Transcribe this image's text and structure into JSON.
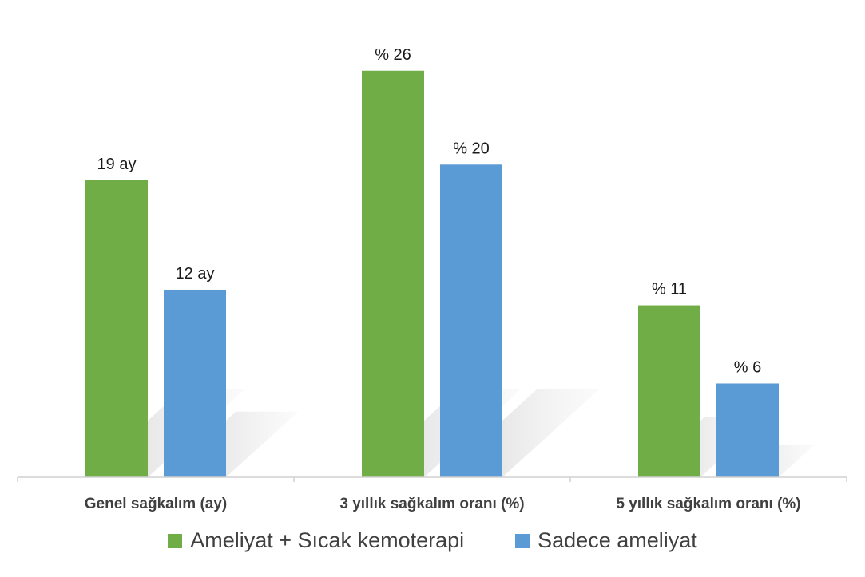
{
  "chart_data": {
    "type": "bar",
    "categories": [
      "Genel sağkalım (ay)",
      "3 yıllık sağkalım oranı (%)",
      "5 yıllık sağkalım oranı (%)"
    ],
    "series": [
      {
        "name": "Ameliyat + Sıcak kemoterapi",
        "color": "#70ad47",
        "values": [
          19,
          26,
          11
        ],
        "labels": [
          "19 ay",
          "% 26",
          "% 11"
        ]
      },
      {
        "name": "Sadece ameliyat",
        "color": "#5b9bd5",
        "values": [
          12,
          20,
          6
        ],
        "labels": [
          "12 ay",
          "% 20",
          "% 6"
        ]
      }
    ],
    "ylim": [
      0,
      29
    ],
    "grid": false,
    "legend_position": "bottom",
    "axis_color": "#d0d0d0",
    "shadow_color": "#d9d9d9"
  }
}
